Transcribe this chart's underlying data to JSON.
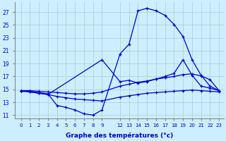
{
  "xlabel": "Graphe des températures (°c)",
  "bg_color": "#cceeff",
  "grid_color": "#aacccc",
  "line_color": "#0000cc",
  "ylim": [
    10.5,
    28.5
  ],
  "yticks": [
    11,
    13,
    15,
    17,
    19,
    21,
    23,
    25,
    27
  ],
  "x_hours": [
    0,
    1,
    2,
    3,
    4,
    5,
    6,
    7,
    8,
    9,
    12,
    13,
    14,
    15,
    16,
    17,
    18,
    19,
    20,
    21,
    22,
    23
  ],
  "line1_hours": [
    0,
    1,
    2,
    3,
    4,
    5,
    6,
    7,
    8,
    9,
    12,
    13,
    14,
    15,
    16,
    17,
    18,
    19,
    20,
    21,
    22,
    23
  ],
  "line1_y": [
    14.8,
    14.7,
    14.5,
    14.3,
    12.5,
    12.2,
    11.8,
    11.2,
    11.0,
    11.8,
    20.5,
    22.0,
    27.2,
    27.6,
    27.2,
    26.5,
    25.1,
    23.2,
    19.6,
    17.2,
    15.5,
    14.8
  ],
  "line2_hours": [
    0,
    1,
    2,
    3,
    9,
    12,
    13,
    14,
    15,
    16,
    17,
    18,
    19,
    20,
    21,
    22,
    23
  ],
  "line2_y": [
    14.8,
    14.6,
    14.4,
    14.2,
    19.6,
    16.2,
    16.4,
    16.0,
    16.2,
    16.6,
    17.0,
    17.5,
    19.6,
    17.2,
    15.5,
    15.2,
    14.8
  ],
  "line3_hours": [
    0,
    1,
    2,
    3,
    4,
    5,
    6,
    7,
    8,
    9,
    12,
    13,
    14,
    15,
    16,
    17,
    18,
    19,
    20,
    21,
    22,
    23
  ],
  "line3_y": [
    14.8,
    14.8,
    14.7,
    14.6,
    14.5,
    14.4,
    14.3,
    14.3,
    14.4,
    14.6,
    15.5,
    15.8,
    16.1,
    16.3,
    16.6,
    16.8,
    17.0,
    17.3,
    17.4,
    17.1,
    16.5,
    14.8
  ],
  "line4_hours": [
    0,
    1,
    2,
    3,
    4,
    5,
    6,
    7,
    8,
    9,
    12,
    13,
    14,
    15,
    16,
    17,
    18,
    19,
    20,
    21,
    22,
    23
  ],
  "line4_y": [
    14.7,
    14.6,
    14.4,
    14.2,
    13.9,
    13.7,
    13.5,
    13.4,
    13.3,
    13.2,
    13.8,
    14.0,
    14.2,
    14.4,
    14.5,
    14.6,
    14.7,
    14.8,
    14.9,
    14.8,
    14.7,
    14.6
  ]
}
